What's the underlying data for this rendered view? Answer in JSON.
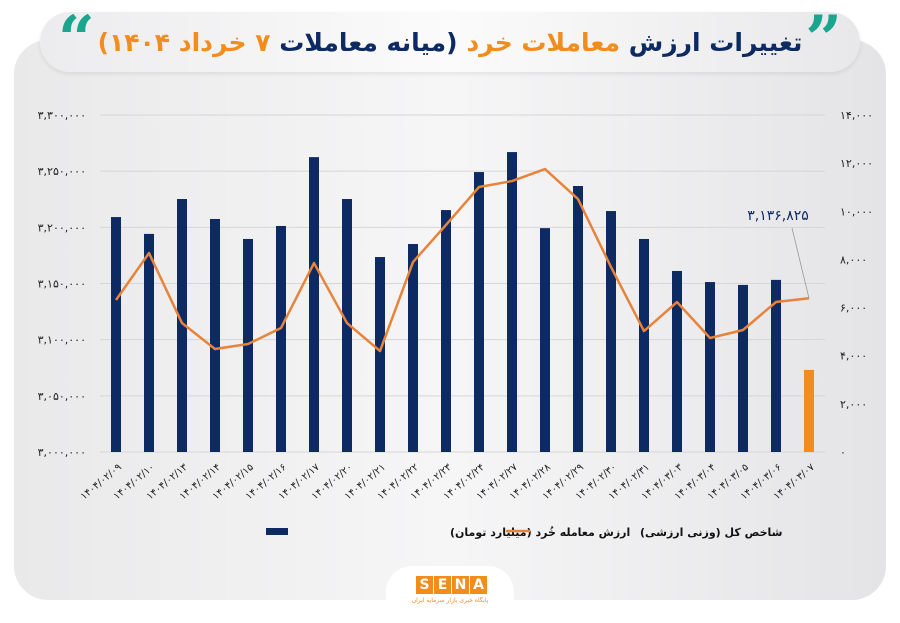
{
  "title": {
    "part1": "تغییرات ارزش",
    "part2": "معاملات خرد",
    "part3": "(میانه معاملات",
    "part4": "۷ خرداد ۱۴۰۴)",
    "quote_left": "“",
    "quote_right": "”"
  },
  "logo": {
    "letters": [
      "S",
      "E",
      "N",
      "A"
    ],
    "subtitle": "پایگاه خبری بازار سرمایه ایران"
  },
  "colors": {
    "bar": "#0e2a63",
    "bar_highlight": "#f28c1c",
    "line": "#e8833a",
    "accent": "#1aa58f"
  },
  "chart_data": {
    "type": "bar+line",
    "categories": [
      "۱۴۰۴/۰۲/۰۹",
      "۱۴۰۴/۰۲/۱۰",
      "۱۴۰۴/۰۲/۱۳",
      "۱۴۰۴/۰۲/۱۴",
      "۱۴۰۴/۰۲/۱۵",
      "۱۴۰۴/۰۲/۱۶",
      "۱۴۰۴/۰۲/۱۷",
      "۱۴۰۴/۰۲/۲۰",
      "۱۴۰۴/۰۲/۲۱",
      "۱۴۰۴/۰۲/۲۲",
      "۱۴۰۴/۰۲/۲۳",
      "۱۴۰۴/۰۲/۲۴",
      "۱۴۰۴/۰۲/۲۷",
      "۱۴۰۴/۰۲/۲۸",
      "۱۴۰۴/۰۲/۲۹",
      "۱۴۰۴/۰۲/۳۰",
      "۱۴۰۴/۰۲/۳۱",
      "۱۴۰۴/۰۳/۰۳",
      "۱۴۰۴/۰۳/۰۴",
      "۱۴۰۴/۰۳/۰۵",
      "۱۴۰۴/۰۳/۰۶",
      "۱۴۰۴/۰۳/۰۷"
    ],
    "series": [
      {
        "name": "ارزش معامله خُرد (میلیارد تومان)",
        "type": "bar",
        "axis": "right",
        "values": [
          9760,
          9060,
          10510,
          9680,
          8850,
          9390,
          12250,
          10510,
          8100,
          8640,
          10050,
          11630,
          12460,
          9300,
          11050,
          10010,
          8850,
          7520,
          7060,
          6940,
          7150,
          3410
        ],
        "highlight_last": true
      },
      {
        "name": "شاخص کل (وزنی ارزشی)",
        "type": "line",
        "axis": "left",
        "values": [
          3135300,
          3177100,
          3114800,
          3091700,
          3096100,
          3110400,
          3168200,
          3114800,
          3089900,
          3169100,
          3202100,
          3235900,
          3241200,
          3251900,
          3225200,
          3164700,
          3107700,
          3133500,
          3101500,
          3108600,
          3133500,
          3136825
        ]
      }
    ],
    "left_axis": {
      "range": [
        3000000,
        3300000
      ],
      "ticks": [
        "۳,۰۰۰,۰۰۰",
        "۳,۰۵۰,۰۰۰",
        "۳,۱۰۰,۰۰۰",
        "۳,۱۵۰,۰۰۰",
        "۳,۲۰۰,۰۰۰",
        "۳,۲۵۰,۰۰۰",
        "۳,۳۰۰,۰۰۰"
      ]
    },
    "right_axis": {
      "range": [
        0,
        14000
      ],
      "ticks": [
        "۰",
        "۲,۰۰۰",
        "۴,۰۰۰",
        "۶,۰۰۰",
        "۸,۰۰۰",
        "۱۰,۰۰۰",
        "۱۲,۰۰۰",
        "۱۴,۰۰۰"
      ]
    },
    "annotation": "۳,۱۳۶,۸۲۵",
    "grid": true,
    "legend_position": "bottom"
  }
}
